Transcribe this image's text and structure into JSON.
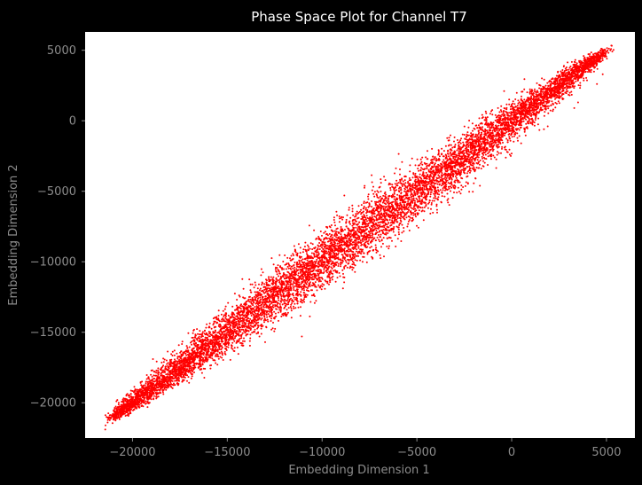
{
  "chart_data": {
    "type": "scatter",
    "title": "Phase Space Plot for Channel T7",
    "xlabel": "Embedding Dimension 1",
    "ylabel": "Embedding Dimension 2",
    "xlim": [
      -22500,
      6500
    ],
    "ylim": [
      -22500,
      6300
    ],
    "xticks": [
      -20000,
      -15000,
      -10000,
      -5000,
      0,
      5000
    ],
    "xtick_labels": [
      "−20000",
      "−15000",
      "−10000",
      "−5000",
      "0",
      "5000"
    ],
    "yticks": [
      -20000,
      -15000,
      -10000,
      -5000,
      0,
      5000
    ],
    "ytick_labels": [
      "−20000",
      "−15000",
      "−10000",
      "−5000",
      "0",
      "5000"
    ],
    "grid": false,
    "background": "#ffffff",
    "figure_background": "#000000",
    "marker_color": "#ff0000",
    "series": [
      {
        "x": [
          -21000,
          -20500,
          -20000,
          -19000,
          -18000,
          -17000,
          -16000,
          -15000,
          -14000,
          -13000,
          -12000,
          -11000,
          -10000,
          -9000,
          -8000,
          -7000,
          -6000,
          -5000,
          -4000,
          -3000,
          -2000,
          -1000,
          0,
          1000,
          2000,
          3000,
          4000,
          4800,
          -20800,
          -19500,
          -18200,
          -16800,
          -15200,
          -13600,
          -12100,
          -10700,
          -9300,
          -7900,
          -6500,
          -5100,
          -3700,
          -2300,
          -900,
          500,
          1900,
          3300,
          4500,
          -21000,
          -19800,
          -18100,
          -16300,
          -14500,
          -12700,
          -10900,
          -9100,
          -7300,
          -5500,
          -3700,
          -1900,
          -100,
          1700,
          3500,
          4800
        ],
        "y": [
          -21000,
          -20300,
          -19600,
          -18700,
          -17900,
          -16900,
          -15800,
          -14800,
          -13800,
          -12900,
          -11900,
          -10800,
          -9800,
          -8800,
          -7900,
          -6900,
          -5900,
          -4900,
          -3800,
          -2800,
          -1800,
          -900,
          200,
          1100,
          2100,
          3100,
          4000,
          4800,
          -19800,
          -18500,
          -17000,
          -15600,
          -14200,
          -12900,
          -11600,
          -10300,
          -9100,
          -7900,
          -6800,
          -5700,
          -4600,
          -3600,
          -2600,
          -1600,
          -400,
          900,
          2600,
          -20900,
          -20300,
          -18900,
          -17300,
          -15700,
          -14200,
          -12500,
          -10800,
          -9200,
          -7500,
          -5800,
          -4100,
          -2400,
          -600,
          1300,
          3300
        ]
      }
    ]
  }
}
